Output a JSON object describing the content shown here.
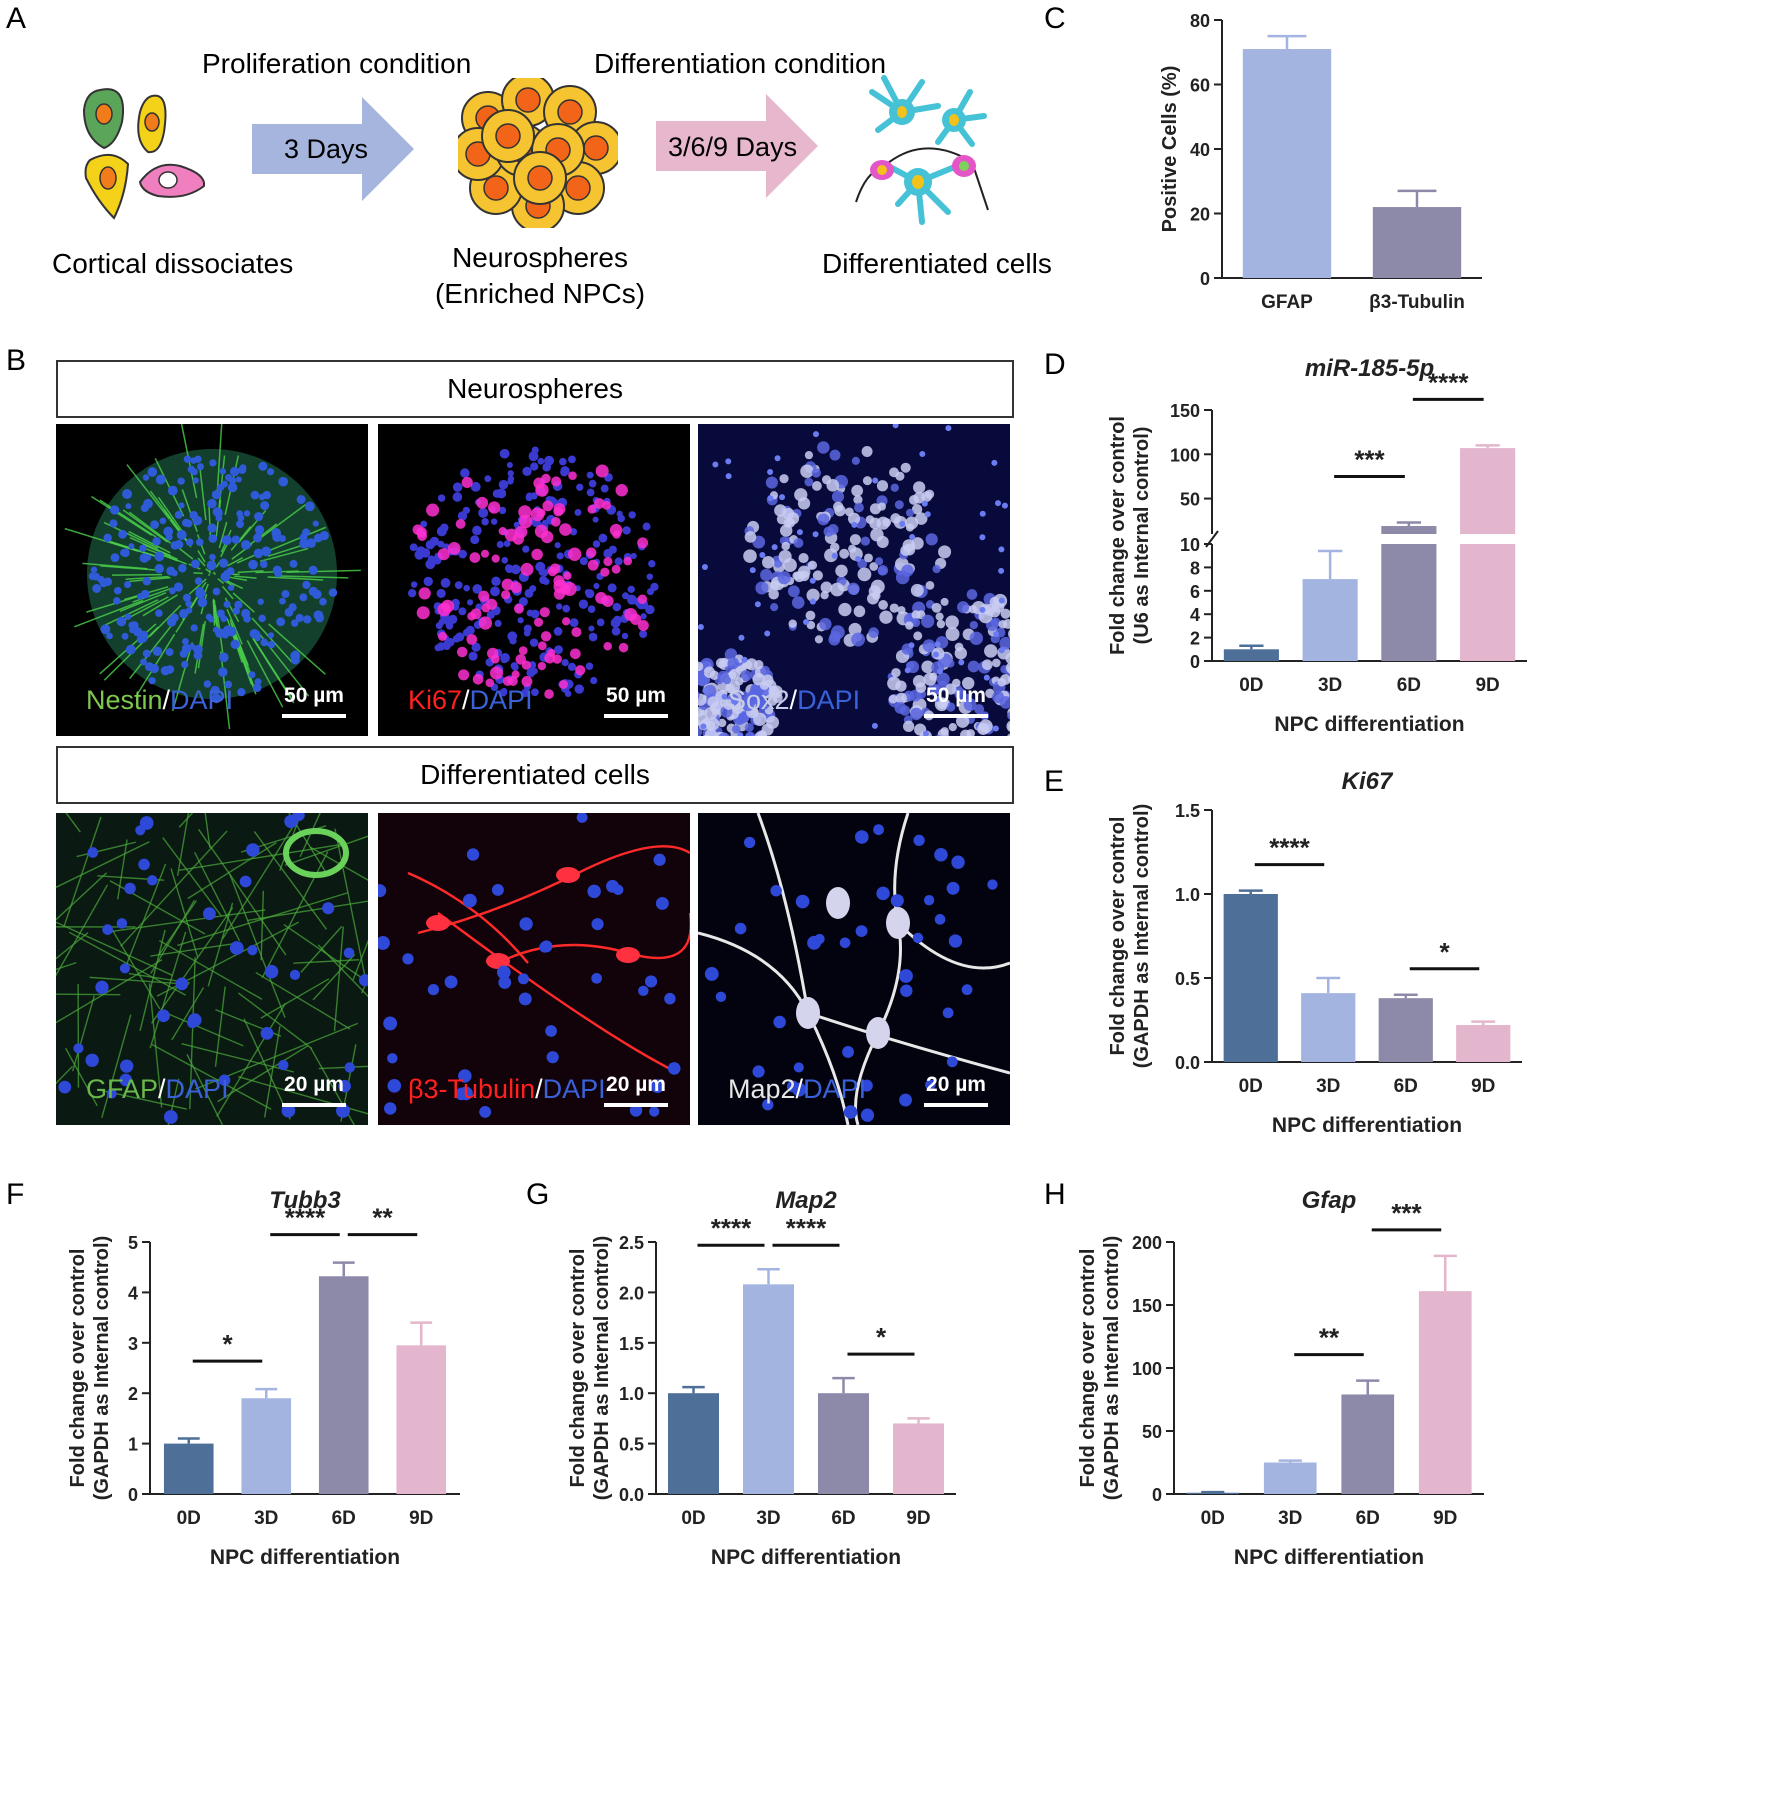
{
  "panel_letters": {
    "a": "A",
    "b": "B",
    "c": "C",
    "d": "D",
    "e": "E",
    "f": "F",
    "g": "G",
    "h": "H"
  },
  "schematic": {
    "prolif_label": "Proliferation condition",
    "diff_label": "Differentiation condition",
    "arrow1": "3 Days",
    "arrow2": "3/6/9 Days",
    "cortical": "Cortical dissociates",
    "neuro_line1": "Neurospheres",
    "neuro_line2": "(Enriched NPCs)",
    "diffcells": "Differentiated cells"
  },
  "micrographs": {
    "header1": "Neurospheres",
    "header2": "Differentiated cells",
    "row1": [
      {
        "m1": "Nestin",
        "c1": "#7ec850",
        "m2": "DAPI",
        "c2": "#3a62d8",
        "scale": "50 µm"
      },
      {
        "m1": "Ki67",
        "c1": "#ff2020",
        "m2": "DAPI",
        "c2": "#3a62d8",
        "scale": "50 µm"
      },
      {
        "m1": "Sox2",
        "c1": "#c8cde8",
        "m2": "DAPI",
        "c2": "#3a62d8",
        "scale": "50 µm"
      }
    ],
    "row2": [
      {
        "m1": "GFAP",
        "c1": "#6ab84a",
        "m2": "DAPI",
        "c2": "#3a62d8",
        "scale": "20 µm"
      },
      {
        "m1": "β3-Tubulin",
        "c1": "#ff2020",
        "m2": "DAPI",
        "c2": "#3a62d8",
        "scale": "20 µm"
      },
      {
        "m1": "Map2",
        "c1": "#e6e6e6",
        "m2": "DAPI",
        "c2": "#3a62d8",
        "scale": "20 µm"
      }
    ]
  },
  "colors": {
    "0D": "#4e6f98",
    "3D": "#a4b4e0",
    "6D": "#8c8aa8",
    "9D": "#e3b6cd",
    "GFAP": "#a4b4e0",
    "β3-Tubulin": "#8c8aa8"
  },
  "chart_data": [
    {
      "panel": "C",
      "type": "bar",
      "title": "",
      "xlabel": "",
      "ylabel": "Positive Cells (%)",
      "categories": [
        "GFAP",
        "β3-Tubulin"
      ],
      "values": [
        71,
        22
      ],
      "errors": [
        4,
        5
      ],
      "ylim": [
        0,
        80
      ],
      "yticks": [
        "0",
        "20",
        "40",
        "60",
        "80"
      ],
      "significance": []
    },
    {
      "panel": "D",
      "type": "bar",
      "title": "miR-185-5p",
      "xlabel": "NPC differentiation",
      "ylabel": "Fold change over control",
      "ylabel2": "(U6 as Internal control)",
      "categories": [
        "0D",
        "3D",
        "6D",
        "9D"
      ],
      "values": [
        1,
        7,
        19,
        107
      ],
      "errors": [
        0.3,
        2.4,
        4,
        3
      ],
      "axis_break": true,
      "yticks_low": [
        "0",
        "2",
        "4",
        "6",
        "8",
        "10"
      ],
      "yticks_high": [
        "50",
        "100",
        "150"
      ],
      "significance": [
        {
          "from": "3D",
          "to": "6D",
          "label": "***"
        },
        {
          "from": "6D",
          "to": "9D",
          "label": "****"
        }
      ]
    },
    {
      "panel": "E",
      "type": "bar",
      "title": "Ki67",
      "xlabel": "NPC differentiation",
      "ylabel": "Fold change over control",
      "ylabel2": "(GAPDH as Internal control)",
      "categories": [
        "0D",
        "3D",
        "6D",
        "9D"
      ],
      "values": [
        1.0,
        0.41,
        0.38,
        0.22
      ],
      "errors": [
        0.02,
        0.09,
        0.02,
        0.02
      ],
      "ylim": [
        0,
        1.5
      ],
      "yticks": [
        "0.0",
        "0.5",
        "1.0",
        "1.5"
      ],
      "significance": [
        {
          "from": "0D",
          "to": "3D",
          "label": "****"
        },
        {
          "from": "6D",
          "to": "9D",
          "label": "*"
        }
      ]
    },
    {
      "panel": "F",
      "type": "bar",
      "title": "Tubb3",
      "xlabel": "NPC differentiation",
      "ylabel": "Fold change over control",
      "ylabel2": "(GAPDH as Internal control)",
      "categories": [
        "0D",
        "3D",
        "6D",
        "9D"
      ],
      "values": [
        1.0,
        1.9,
        4.32,
        2.95
      ],
      "errors": [
        0.1,
        0.18,
        0.27,
        0.45
      ],
      "ylim": [
        0,
        5
      ],
      "yticks": [
        "0",
        "1",
        "2",
        "3",
        "4",
        "5"
      ],
      "significance": [
        {
          "from": "0D",
          "to": "3D",
          "label": "*"
        },
        {
          "from": "3D",
          "to": "6D",
          "label": "****"
        },
        {
          "from": "6D",
          "to": "9D",
          "label": "**"
        }
      ]
    },
    {
      "panel": "G",
      "type": "bar",
      "title": "Map2",
      "xlabel": "NPC differentiation",
      "ylabel": "Fold change over control",
      "ylabel2": "(GAPDH as Internal control)",
      "categories": [
        "0D",
        "3D",
        "6D",
        "9D"
      ],
      "values": [
        1.0,
        2.08,
        1.0,
        0.7
      ],
      "errors": [
        0.06,
        0.15,
        0.15,
        0.05
      ],
      "ylim": [
        0,
        2.5
      ],
      "yticks": [
        "0.0",
        "0.5",
        "1.0",
        "1.5",
        "2.0",
        "2.5"
      ],
      "significance": [
        {
          "from": "0D",
          "to": "3D",
          "label": "****"
        },
        {
          "from": "3D",
          "to": "6D",
          "label": "****"
        },
        {
          "from": "6D",
          "to": "9D",
          "label": "*"
        }
      ]
    },
    {
      "panel": "H",
      "type": "bar",
      "title": "Gfap",
      "xlabel": "NPC differentiation",
      "ylabel": "Fold change over control",
      "ylabel2": "(GAPDH as Internal control)",
      "categories": [
        "0D",
        "3D",
        "6D",
        "9D"
      ],
      "values": [
        1,
        25,
        79,
        161
      ],
      "errors": [
        0.5,
        1.5,
        11,
        28
      ],
      "ylim": [
        0,
        200
      ],
      "yticks": [
        "0",
        "50",
        "100",
        "150",
        "200"
      ],
      "significance": [
        {
          "from": "3D",
          "to": "6D",
          "label": "**"
        },
        {
          "from": "6D",
          "to": "9D",
          "label": "***"
        }
      ]
    }
  ]
}
